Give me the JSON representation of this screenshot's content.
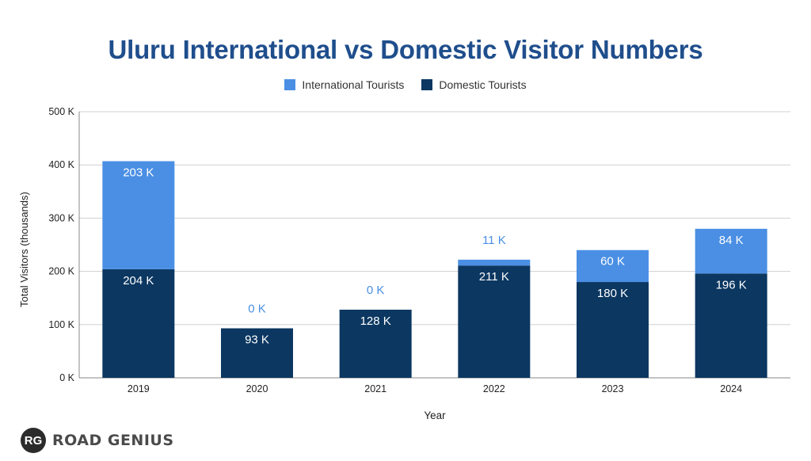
{
  "chart_data": {
    "type": "bar",
    "stacked": true,
    "title": "Uluru International vs Domestic Visitor Numbers",
    "xlabel": "Year",
    "ylabel": "Total Visitors (thousands)",
    "categories": [
      "2019",
      "2020",
      "2021",
      "2022",
      "2023",
      "2024"
    ],
    "ylim": [
      0,
      500
    ],
    "yticks": [
      0,
      100,
      200,
      300,
      400,
      500
    ],
    "ytick_labels": [
      "0 K",
      "100 K",
      "200 K",
      "300 K",
      "400 K",
      "500 K"
    ],
    "grid": true,
    "legend_position": "top-center",
    "series": [
      {
        "name": "Domestic Tourists",
        "color": "#0b3761",
        "values": [
          204,
          93,
          128,
          211,
          180,
          196
        ],
        "labels": [
          "204 K",
          "93 K",
          "128 K",
          "211 K",
          "180 K",
          "196 K"
        ]
      },
      {
        "name": "International Tourists",
        "color": "#4a8fe4",
        "values": [
          203,
          0,
          0,
          11,
          60,
          84
        ],
        "labels": [
          "203 K",
          "0 K",
          "0 K",
          "11 K",
          "60 K",
          "84 K"
        ]
      }
    ]
  },
  "legend": {
    "items": [
      {
        "label": "International Tourists",
        "color": "#4a8fe4"
      },
      {
        "label": "Domestic Tourists",
        "color": "#0b3761"
      }
    ]
  },
  "logo": {
    "badge": "RG",
    "text": "ROAD GENIUS"
  }
}
